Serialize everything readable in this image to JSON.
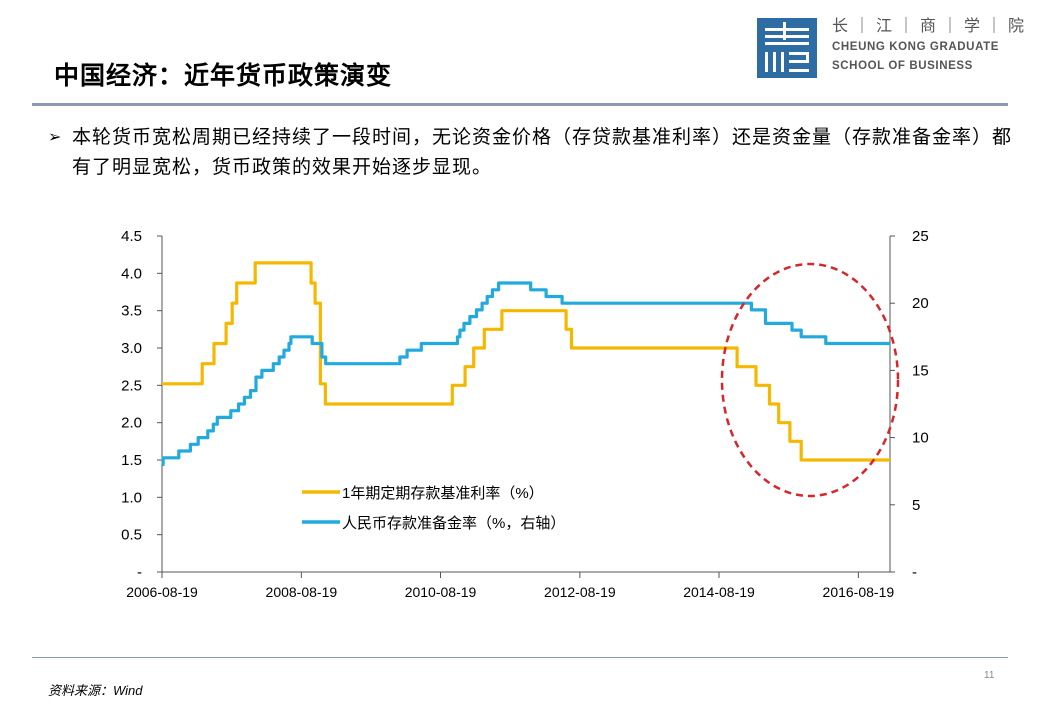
{
  "header": {
    "title": "中国经济：近年货币政策演变",
    "logo": {
      "cn": "长｜江｜商｜学｜院",
      "en_line1": "CHEUNG KONG GRADUATE",
      "en_line2": "SCHOOL OF BUSINESS",
      "color": "#2e6da4"
    }
  },
  "bullet": {
    "marker": "➢",
    "text": "本轮货币宽松周期已经持续了一段时间，无论资金价格（存贷款基准利率）还是资金量（存款准备金率）都有了明显宽松，货币政策的效果开始逐步显现。"
  },
  "chart_data": {
    "type": "line",
    "x_type": "date",
    "x_ticks": [
      "2006-08-19",
      "2008-08-19",
      "2010-08-19",
      "2012-08-19",
      "2014-08-19",
      "2016-08-19"
    ],
    "xlim": [
      "2006-08-19",
      "2017-02-01"
    ],
    "y_left": {
      "ylim": [
        0,
        4.5
      ],
      "ticks": [
        "-",
        "0.5",
        "1.0",
        "1.5",
        "2.0",
        "2.5",
        "3.0",
        "3.5",
        "4.0",
        "4.5"
      ]
    },
    "y_right": {
      "ylim": [
        0,
        25
      ],
      "ticks": [
        "-",
        "5",
        "10",
        "15",
        "20",
        "25"
      ]
    },
    "series": [
      {
        "name": "1年期定期存款基准利率（%）",
        "axis": "left",
        "color": "#f5b800",
        "points": [
          [
            "2006-08-19",
            2.52
          ],
          [
            "2007-03-18",
            2.79
          ],
          [
            "2007-05-19",
            3.06
          ],
          [
            "2007-07-21",
            3.33
          ],
          [
            "2007-08-22",
            3.6
          ],
          [
            "2007-09-15",
            3.87
          ],
          [
            "2007-12-21",
            4.14
          ],
          [
            "2008-10-09",
            3.87
          ],
          [
            "2008-10-30",
            3.6
          ],
          [
            "2008-11-27",
            2.52
          ],
          [
            "2008-12-23",
            2.25
          ],
          [
            "2010-10-20",
            2.5
          ],
          [
            "2010-12-26",
            2.75
          ],
          [
            "2011-02-09",
            3.0
          ],
          [
            "2011-04-06",
            3.25
          ],
          [
            "2011-07-07",
            3.5
          ],
          [
            "2012-06-08",
            3.25
          ],
          [
            "2012-07-06",
            3.0
          ],
          [
            "2014-11-22",
            2.75
          ],
          [
            "2015-03-01",
            2.5
          ],
          [
            "2015-05-11",
            2.25
          ],
          [
            "2015-06-28",
            2.0
          ],
          [
            "2015-08-26",
            1.75
          ],
          [
            "2015-10-24",
            1.5
          ],
          [
            "2017-02-01",
            1.5
          ]
        ]
      },
      {
        "name": "人民币存款准备金率（%，右轴）",
        "axis": "right",
        "color": "#22a9de",
        "points": [
          [
            "2006-08-19",
            8.0
          ],
          [
            "2006-08-25",
            8.5
          ],
          [
            "2006-11-15",
            9.0
          ],
          [
            "2007-01-15",
            9.5
          ],
          [
            "2007-02-25",
            10.0
          ],
          [
            "2007-04-16",
            10.5
          ],
          [
            "2007-05-15",
            11.0
          ],
          [
            "2007-06-05",
            11.5
          ],
          [
            "2007-08-15",
            12.0
          ],
          [
            "2007-09-25",
            12.5
          ],
          [
            "2007-10-25",
            13.0
          ],
          [
            "2007-11-26",
            13.5
          ],
          [
            "2007-12-25",
            14.5
          ],
          [
            "2008-01-25",
            15.0
          ],
          [
            "2008-03-25",
            15.5
          ],
          [
            "2008-04-25",
            16.0
          ],
          [
            "2008-05-20",
            16.5
          ],
          [
            "2008-06-15",
            17.0
          ],
          [
            "2008-06-25",
            17.5
          ],
          [
            "2008-10-15",
            17.0
          ],
          [
            "2008-12-05",
            16.0
          ],
          [
            "2008-12-25",
            15.5
          ],
          [
            "2010-01-18",
            16.0
          ],
          [
            "2010-02-25",
            16.5
          ],
          [
            "2010-05-10",
            17.0
          ],
          [
            "2010-11-16",
            17.5
          ],
          [
            "2010-11-29",
            18.0
          ],
          [
            "2010-12-20",
            18.5
          ],
          [
            "2011-01-20",
            19.0
          ],
          [
            "2011-02-24",
            19.5
          ],
          [
            "2011-03-25",
            20.0
          ],
          [
            "2011-04-21",
            20.5
          ],
          [
            "2011-05-18",
            21.0
          ],
          [
            "2011-06-20",
            21.5
          ],
          [
            "2011-12-05",
            21.0
          ],
          [
            "2012-02-24",
            20.5
          ],
          [
            "2012-05-18",
            20.0
          ],
          [
            "2015-02-05",
            19.5
          ],
          [
            "2015-04-20",
            18.5
          ],
          [
            "2015-06-28",
            18.5
          ],
          [
            "2015-09-06",
            18.0
          ],
          [
            "2015-10-24",
            17.5
          ],
          [
            "2016-03-01",
            17.0
          ],
          [
            "2017-02-01",
            17.0
          ]
        ]
      }
    ],
    "legend_placement": "bottom-center",
    "highlight": {
      "type": "dashed-ellipse",
      "color": "#d7262b",
      "around": "2014-08-19 to 2016-08-19"
    }
  },
  "footer": {
    "page_number": "11",
    "source": "资料来源：Wind"
  }
}
